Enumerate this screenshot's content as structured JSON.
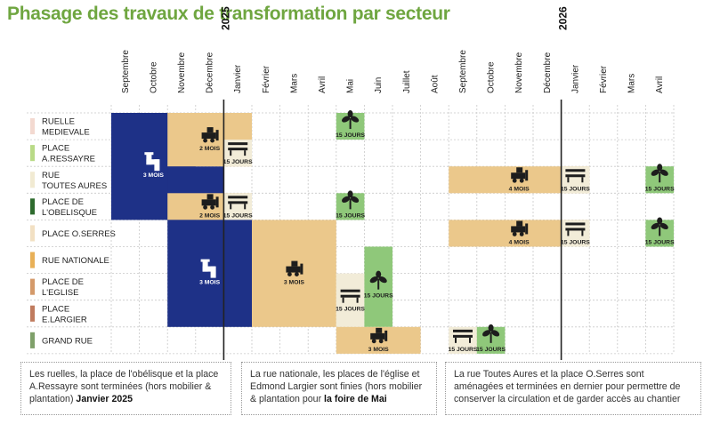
{
  "title": "Phasage des travaux de transformation par secteur",
  "months": [
    "Septembre",
    "Octobre",
    "Novembre",
    "Décembre",
    "Janvier",
    "Février",
    "Mars",
    "Avril",
    "Mai",
    "Juin",
    "Juillet",
    "Août",
    "Septembre",
    "Octobre",
    "Novembre",
    "Décembre",
    "Janvier",
    "Février",
    "Mars",
    "Avril"
  ],
  "year_labels": [
    {
      "month_index": 4,
      "year": "2025"
    },
    {
      "month_index": 16,
      "year": "2026"
    }
  ],
  "colors": {
    "reseaux": "#1e3187",
    "voirie": "#ebc88b",
    "mobilier": "#f2ecd8",
    "plantation": "#8fc87a",
    "grid": "#c9c9c9",
    "title": "#6fa640",
    "year_line": "#222222"
  },
  "sectors": [
    {
      "name_lines": [
        "RUELLE",
        "MEDIEVALE"
      ],
      "color": "#f3d9d0"
    },
    {
      "name_lines": [
        "PLACE",
        "A.RESSAYRE"
      ],
      "color": "#b9da87"
    },
    {
      "name_lines": [
        "RUE",
        "TOUTES AURES"
      ],
      "color": "#f1ead2"
    },
    {
      "name_lines": [
        "PLACE DE",
        "L'OBELISQUE"
      ],
      "color": "#2e6b2e"
    },
    {
      "name_lines": [
        "PLACE O.SERRES"
      ],
      "color": "#f2e0c3"
    },
    {
      "name_lines": [
        "RUE NATIONALE"
      ],
      "color": "#e8b057"
    },
    {
      "name_lines": [
        "PLACE DE",
        "L'EGLISE"
      ],
      "color": "#d49a6a"
    },
    {
      "name_lines": [
        "PLACE",
        "E.LARGIER"
      ],
      "color": "#c07b5e"
    },
    {
      "name_lines": [
        "GRAND RUE"
      ],
      "color": "#7fa06a"
    }
  ],
  "tasks": [
    {
      "type": "reseaux",
      "row_start": 0,
      "row_end": 3,
      "month_start": 0,
      "month_end": 2,
      "label": "3 MOIS",
      "icon": "pipe-icon"
    },
    {
      "type": "reseaux",
      "row_start": 2,
      "row_end": 3,
      "month_start": 2,
      "month_end": 3
    },
    {
      "type": "voirie",
      "row_start": 0,
      "row_end": 1,
      "month_start": 2,
      "month_end": 4,
      "label": "2 MOIS",
      "icon": "bulldozer-icon"
    },
    {
      "type": "mobilier",
      "row_start": 1,
      "row_end": 1,
      "month_start": 4,
      "month_end": 4,
      "label": "15 JOURS",
      "icon": "bench-icon"
    },
    {
      "type": "plantation",
      "row_start": 0,
      "row_end": 0,
      "month_start": 8,
      "month_end": 8,
      "label": "15 JOURS",
      "icon": "plant-icon"
    },
    {
      "type": "voirie",
      "row_start": 3,
      "row_end": 3,
      "month_start": 2,
      "month_end": 4,
      "label": "2 MOIS",
      "icon": "bulldozer-icon"
    },
    {
      "type": "mobilier",
      "row_start": 3,
      "row_end": 3,
      "month_start": 4,
      "month_end": 4,
      "label": "15 JOURS",
      "icon": "bench-icon"
    },
    {
      "type": "plantation",
      "row_start": 3,
      "row_end": 3,
      "month_start": 8,
      "month_end": 8,
      "label": "15 JOURS",
      "icon": "plant-icon"
    },
    {
      "type": "voirie",
      "row_start": 2,
      "row_end": 2,
      "month_start": 12,
      "month_end": 16,
      "label": "4 MOIS",
      "icon": "bulldozer-icon"
    },
    {
      "type": "mobilier",
      "row_start": 2,
      "row_end": 2,
      "month_start": 16,
      "month_end": 16,
      "label": "15 JOURS",
      "icon": "bench-icon"
    },
    {
      "type": "plantation",
      "row_start": 2,
      "row_end": 2,
      "month_start": 19,
      "month_end": 19,
      "label": "15 JOURS",
      "icon": "plant-icon"
    },
    {
      "type": "voirie",
      "row_start": 4,
      "row_end": 4,
      "month_start": 12,
      "month_end": 16,
      "label": "4 MOIS",
      "icon": "bulldozer-icon"
    },
    {
      "type": "mobilier",
      "row_start": 4,
      "row_end": 4,
      "month_start": 16,
      "month_end": 16,
      "label": "15 JOURS",
      "icon": "bench-icon"
    },
    {
      "type": "plantation",
      "row_start": 4,
      "row_end": 4,
      "month_start": 19,
      "month_end": 19,
      "label": "15 JOURS",
      "icon": "plant-icon"
    },
    {
      "type": "reseaux",
      "row_start": 4,
      "row_end": 7,
      "month_start": 2,
      "month_end": 4,
      "label": "3 MOIS",
      "icon": "pipe-icon"
    },
    {
      "type": "voirie",
      "row_start": 4,
      "row_end": 7,
      "month_start": 5,
      "month_end": 7,
      "label": "3 MOIS",
      "icon": "bulldozer-icon"
    },
    {
      "type": "mobilier",
      "row_start": 6,
      "row_end": 7,
      "month_start": 8,
      "month_end": 8,
      "label": "15 JOURS",
      "icon": "bench-icon"
    },
    {
      "type": "plantation",
      "row_start": 5,
      "row_end": 7,
      "month_start": 9,
      "month_end": 9,
      "label": "15 JOURS",
      "icon": "plant-icon"
    },
    {
      "type": "voirie",
      "row_start": 8,
      "row_end": 8,
      "month_start": 8,
      "month_end": 10,
      "label": "3 MOIS",
      "icon": "bulldozer-icon"
    },
    {
      "type": "mobilier",
      "row_start": 8,
      "row_end": 8,
      "month_start": 12,
      "month_end": 12,
      "label": "15 JOURS",
      "icon": "bench-icon"
    },
    {
      "type": "plantation",
      "row_start": 8,
      "row_end": 8,
      "month_start": 13,
      "month_end": 13,
      "label": "15 JOURS",
      "icon": "plant-icon"
    }
  ],
  "notes": [
    {
      "text_before": "Les ruelles, la place de l'obélisque et la place A.Ressayre sont terminées (hors mobilier & plantation) ",
      "bold": "Janvier 2025",
      "text_after": ""
    },
    {
      "text_before": "La rue nationale, les places de l'église et Edmond Largier sont finies (hors mobilier & plantation pour ",
      "bold": "la foire de Mai",
      "text_after": ""
    },
    {
      "text_before": "La rue Toutes Aures et la place O.Serres sont aménagées et terminées en dernier pour permettre de conserver la circulation et de garder accès au chantier",
      "bold": "",
      "text_after": ""
    }
  ]
}
